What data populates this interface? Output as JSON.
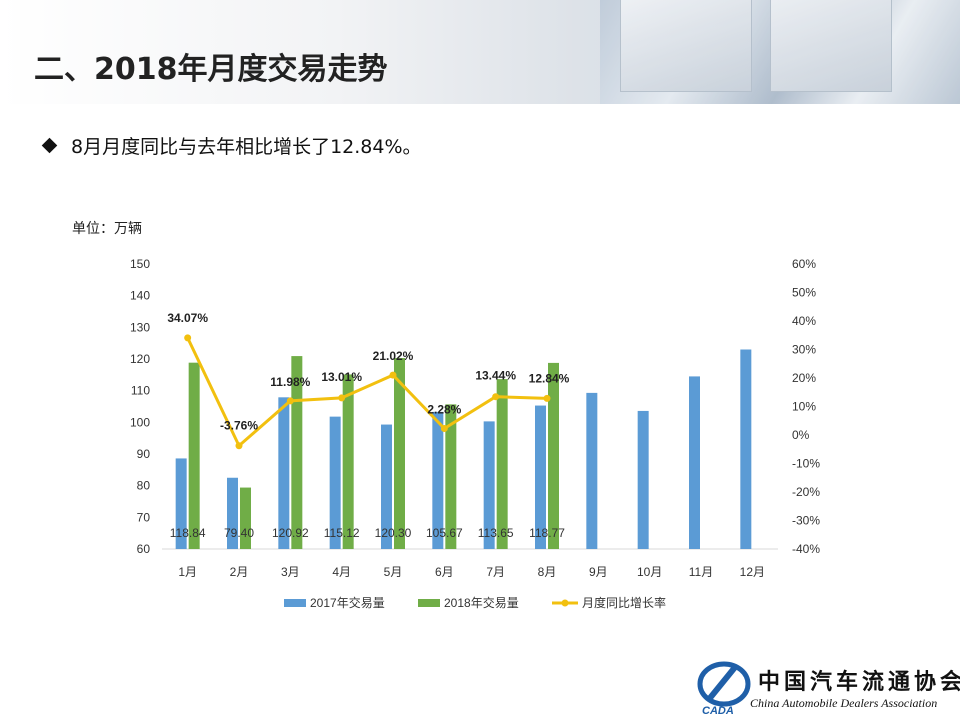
{
  "header": {
    "title": "二、2018年月度交易走势"
  },
  "bullet": {
    "text": "8月月度同比与去年相比增长了12.84%。"
  },
  "unit": "单位：万辆",
  "colors": {
    "series2017": "#5b9bd5",
    "series2018": "#70ad47",
    "growth": "#f2c00f",
    "axis": "#d9d9d9"
  },
  "chart_data": {
    "type": "bar",
    "categories": [
      "1月",
      "2月",
      "3月",
      "4月",
      "5月",
      "6月",
      "7月",
      "8月",
      "9月",
      "10月",
      "11月",
      "12月"
    ],
    "series": [
      {
        "name": "2017年交易量",
        "kind": "bar",
        "axis": "left",
        "values": [
          88.6,
          82.5,
          107.9,
          101.8,
          99.3,
          103.3,
          100.3,
          105.3,
          109.3,
          103.6,
          114.5,
          123.0
        ]
      },
      {
        "name": "2018年交易量",
        "kind": "bar",
        "axis": "left",
        "values": [
          118.84,
          79.4,
          120.92,
          115.12,
          120.3,
          105.67,
          113.65,
          118.77,
          null,
          null,
          null,
          null
        ],
        "data_labels": [
          "118.84",
          "79.40",
          "120.92",
          "115.12",
          "120.30",
          "105.67",
          "113.65",
          "118.77"
        ]
      },
      {
        "name": "月度同比增长率",
        "kind": "line",
        "axis": "right",
        "values": [
          34.07,
          -3.76,
          11.98,
          13.01,
          21.02,
          2.28,
          13.44,
          12.84,
          null,
          null,
          null,
          null
        ],
        "data_labels": [
          "34.07%",
          "-3.76%",
          "11.98%",
          "13.01%",
          "21.02%",
          "2.28%",
          "13.44%",
          "12.84%"
        ]
      }
    ],
    "y_left": {
      "range": [
        60,
        150
      ],
      "ticks": [
        "60",
        "70",
        "80",
        "90",
        "100",
        "110",
        "120",
        "130",
        "140",
        "150"
      ]
    },
    "y_right": {
      "range": [
        -40,
        60
      ],
      "ticks": [
        "-40%",
        "-30%",
        "-20%",
        "-10%",
        "0%",
        "10%",
        "20%",
        "30%",
        "40%",
        "50%",
        "60%"
      ]
    },
    "grid": false,
    "legend_position": "bottom"
  },
  "logo": {
    "cn": "中国汽车流通协会",
    "en": "China Automobile Dealers Association",
    "emblem": "CADA"
  }
}
